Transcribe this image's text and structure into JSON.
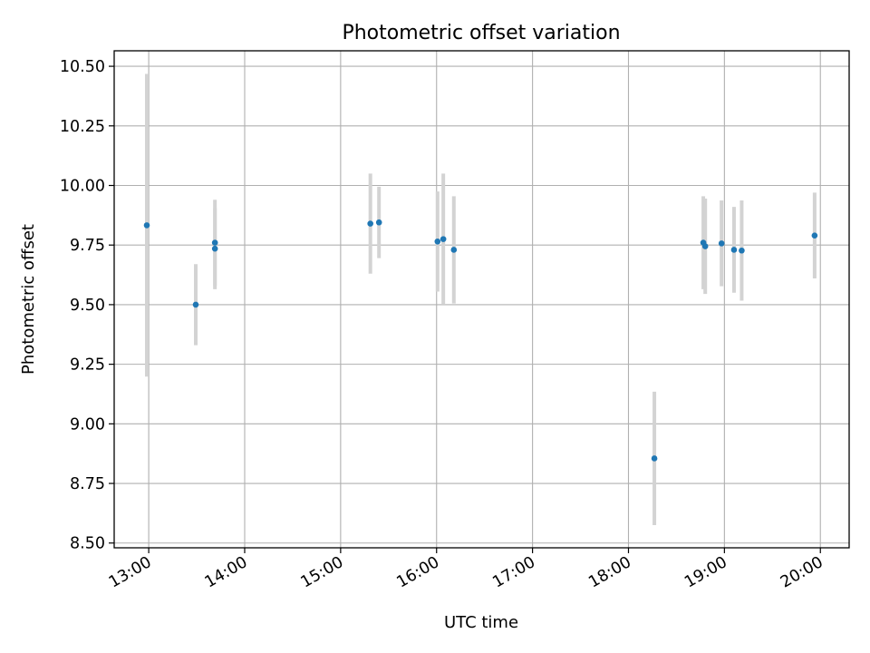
{
  "chart_data": {
    "type": "scatter",
    "title": "Photometric offset variation",
    "xlabel": "UTC time",
    "ylabel": "Photometric offset",
    "xlim": [
      12.64,
      20.3
    ],
    "ylim": [
      8.48,
      10.565
    ],
    "grid": true,
    "x_ticks": [
      {
        "value": 13,
        "label": "13:00"
      },
      {
        "value": 14,
        "label": "14:00"
      },
      {
        "value": 15,
        "label": "15:00"
      },
      {
        "value": 16,
        "label": "16:00"
      },
      {
        "value": 17,
        "label": "17:00"
      },
      {
        "value": 18,
        "label": "18:00"
      },
      {
        "value": 19,
        "label": "19:00"
      },
      {
        "value": 20,
        "label": "20:00"
      }
    ],
    "y_ticks": [
      {
        "value": 8.5,
        "label": "8.50"
      },
      {
        "value": 8.75,
        "label": "8.75"
      },
      {
        "value": 9.0,
        "label": "9.00"
      },
      {
        "value": 9.25,
        "label": "9.25"
      },
      {
        "value": 9.5,
        "label": "9.50"
      },
      {
        "value": 9.75,
        "label": "9.75"
      },
      {
        "value": 10.0,
        "label": "10.00"
      },
      {
        "value": 10.25,
        "label": "10.25"
      },
      {
        "value": 10.5,
        "label": "10.50"
      }
    ],
    "series": [
      {
        "name": "Photometric offset",
        "marker_color": "#1f77b4",
        "errorbar_color": "#d3d3d3",
        "points": [
          {
            "x": 12.98,
            "y": 9.833,
            "err": 0.635
          },
          {
            "x": 13.49,
            "y": 9.5,
            "err": 0.17
          },
          {
            "x": 13.69,
            "y": 9.76,
            "err": 0.18
          },
          {
            "x": 13.69,
            "y": 9.735,
            "err": 0.17
          },
          {
            "x": 15.31,
            "y": 9.84,
            "err": 0.21
          },
          {
            "x": 15.4,
            "y": 9.845,
            "err": 0.15
          },
          {
            "x": 16.01,
            "y": 9.765,
            "err": 0.21
          },
          {
            "x": 16.07,
            "y": 9.775,
            "err": 0.275
          },
          {
            "x": 16.18,
            "y": 9.73,
            "err": 0.225
          },
          {
            "x": 18.27,
            "y": 8.855,
            "err": 0.28
          },
          {
            "x": 18.78,
            "y": 9.76,
            "err": 0.195
          },
          {
            "x": 18.8,
            "y": 9.745,
            "err": 0.2
          },
          {
            "x": 18.97,
            "y": 9.757,
            "err": 0.18
          },
          {
            "x": 19.1,
            "y": 9.73,
            "err": 0.18
          },
          {
            "x": 19.18,
            "y": 9.727,
            "err": 0.21
          },
          {
            "x": 19.94,
            "y": 9.79,
            "err": 0.18
          }
        ]
      }
    ]
  }
}
